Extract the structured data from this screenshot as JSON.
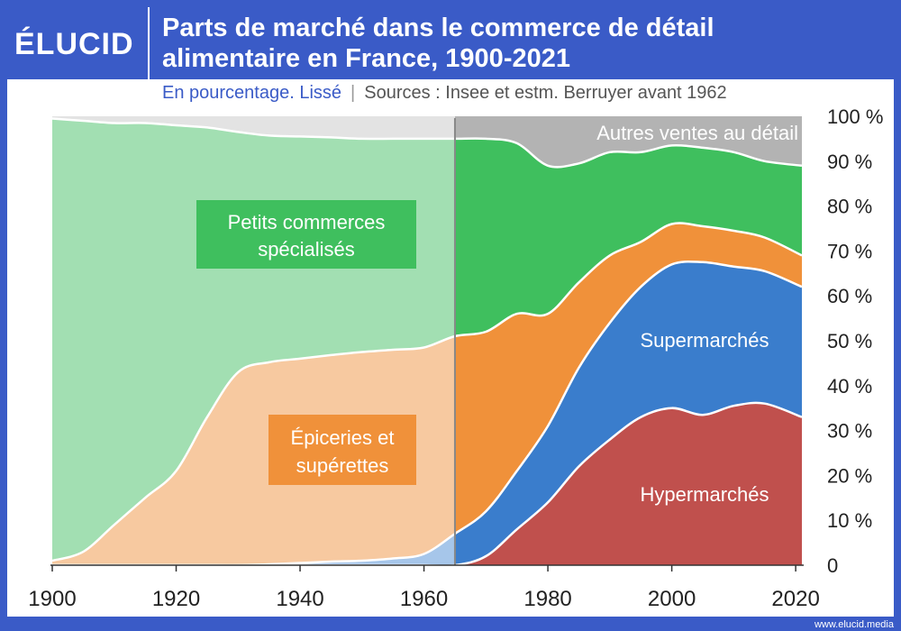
{
  "header": {
    "logo": "ÉLUCID",
    "title_line1": "Parts de marché dans le commerce de détail",
    "title_line2": "alimentaire en France, 1900-2021",
    "subtitle_accent": "En pourcentage. Lissé",
    "subtitle_sep": "|",
    "subtitle_sources": "Sources : Insee et estm. Berruyer avant 1962"
  },
  "footer": {
    "url": "www.elucid.media"
  },
  "colors": {
    "frame": "#3a5bc7",
    "specialises_pre": "#a2dfb2",
    "specialises": "#3fbf5e",
    "epiceries_pre": "#f7c9a0",
    "epiceries": "#f0913a",
    "supermarches_pre": "#a6c6ea",
    "supermarches": "#3a7dcc",
    "hypermarches": "#c0504d",
    "autres_pre": "#e3e3e3",
    "autres": "#b3b3b3"
  },
  "chart_data": {
    "type": "area",
    "stacked": true,
    "xlim": [
      1900,
      2021
    ],
    "ylim": [
      0,
      100
    ],
    "split_year": 1965,
    "x_ticks": [
      "1900",
      "1920",
      "1940",
      "1960",
      "1980",
      "2000",
      "2020"
    ],
    "y_ticks": [
      "0",
      "10 %",
      "20 %",
      "30 %",
      "40 %",
      "50 %",
      "60 %",
      "70 %",
      "80 %",
      "90 %",
      "100 %"
    ],
    "x": [
      1900,
      1905,
      1910,
      1915,
      1920,
      1925,
      1930,
      1935,
      1940,
      1945,
      1950,
      1955,
      1960,
      1965,
      1970,
      1975,
      1980,
      1985,
      1990,
      1995,
      2000,
      2005,
      2010,
      2015,
      2021
    ],
    "series": [
      {
        "key": "hyper",
        "name": "Hypermarchés",
        "values": [
          0,
          0,
          0,
          0,
          0,
          0,
          0,
          0,
          0,
          0,
          0,
          0,
          0,
          0,
          2,
          8,
          14,
          22,
          28,
          33,
          35,
          33.5,
          35.5,
          36,
          33
        ]
      },
      {
        "key": "super",
        "name": "Supermarchés",
        "values": [
          0,
          0,
          0,
          0,
          0,
          0,
          0,
          0.2,
          0.5,
          0.8,
          1,
          1.5,
          2.5,
          7,
          10,
          13,
          17,
          22,
          26,
          29,
          32,
          34,
          31,
          29.5,
          29
        ]
      },
      {
        "key": "epic",
        "name": "Épiceries et supérettes",
        "values": [
          1,
          3,
          9,
          15,
          21,
          33,
          43,
          45,
          45.5,
          46,
          46.5,
          46.5,
          46,
          44,
          40,
          35,
          25,
          19,
          15,
          10,
          9,
          8,
          8,
          7.5,
          7
        ]
      },
      {
        "key": "spec",
        "name": "Petits commerces spécialisés",
        "values": [
          98.5,
          96,
          89.5,
          83.5,
          77,
          64.5,
          53.5,
          50.5,
          49.5,
          48.5,
          47.5,
          47,
          46.5,
          44,
          43,
          38,
          33,
          26.5,
          23,
          20,
          17.5,
          17.5,
          17.5,
          17,
          20
        ]
      },
      {
        "key": "autres",
        "name": "Autres ventes au détail",
        "values": [
          0.5,
          1,
          1.5,
          1.5,
          2,
          2.5,
          3.5,
          4.3,
          4.5,
          4.7,
          5,
          5,
          5,
          5,
          5,
          6,
          11,
          10.5,
          8,
          8,
          6.5,
          7,
          8,
          10,
          11
        ]
      }
    ],
    "labels": {
      "spec_line1": "Petits commerces",
      "spec_line2": "spécialisés",
      "epic_line1": "Épiceries et",
      "epic_line2": "supérettes",
      "super": "Supermarchés",
      "hyper": "Hypermarchés",
      "autres": "Autres ventes au détail"
    }
  }
}
